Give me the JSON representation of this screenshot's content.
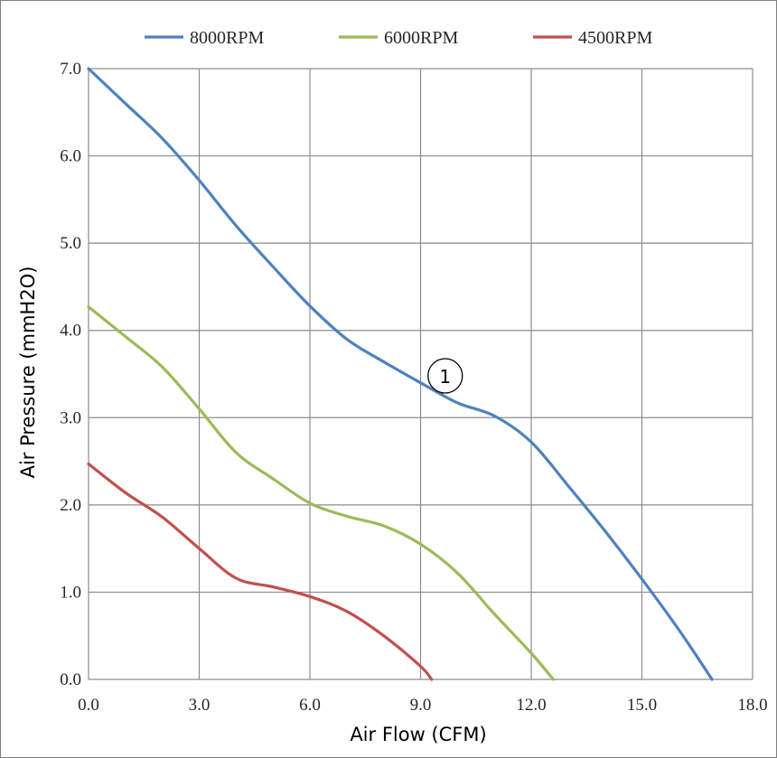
{
  "chart_data": {
    "type": "line",
    "title": "",
    "xlabel": "Air Flow (CFM)",
    "ylabel": "Air Pressure (mmH2O)",
    "xlim": [
      0,
      18
    ],
    "ylim": [
      0,
      7
    ],
    "x_ticks": [
      "0.0",
      "3.0",
      "6.0",
      "9.0",
      "12.0",
      "15.0",
      "18.0"
    ],
    "y_ticks": [
      "0.0",
      "1.0",
      "2.0",
      "3.0",
      "4.0",
      "5.0",
      "6.0",
      "7.0"
    ],
    "grid": true,
    "legend_position": "top-center",
    "annotation": "1",
    "annotation_point": [
      9.3,
      3.5
    ],
    "series": [
      {
        "name": "8000RPM",
        "color": "#4f81bd",
        "points": [
          [
            0,
            7.0
          ],
          [
            1.0,
            6.6
          ],
          [
            2.0,
            6.2
          ],
          [
            3.0,
            5.72
          ],
          [
            4.0,
            5.2
          ],
          [
            5.0,
            4.73
          ],
          [
            6.0,
            4.28
          ],
          [
            7.0,
            3.9
          ],
          [
            8.0,
            3.64
          ],
          [
            9.0,
            3.4
          ],
          [
            10.0,
            3.17
          ],
          [
            11.0,
            3.02
          ],
          [
            12.0,
            2.72
          ],
          [
            13.0,
            2.22
          ],
          [
            14.0,
            1.7
          ],
          [
            15.0,
            1.15
          ],
          [
            16.0,
            0.57
          ],
          [
            16.9,
            0.0
          ]
        ]
      },
      {
        "name": "6000RPM",
        "color": "#9bbb59",
        "points": [
          [
            0,
            4.27
          ],
          [
            1.0,
            3.93
          ],
          [
            2.0,
            3.58
          ],
          [
            3.0,
            3.1
          ],
          [
            4.0,
            2.6
          ],
          [
            5.0,
            2.3
          ],
          [
            6.0,
            2.02
          ],
          [
            7.0,
            1.87
          ],
          [
            8.0,
            1.76
          ],
          [
            9.0,
            1.55
          ],
          [
            10.0,
            1.22
          ],
          [
            11.0,
            0.75
          ],
          [
            12.0,
            0.3
          ],
          [
            12.6,
            0.0
          ]
        ]
      },
      {
        "name": "4500RPM",
        "color": "#c0504d",
        "points": [
          [
            0,
            2.47
          ],
          [
            1.0,
            2.14
          ],
          [
            2.0,
            1.86
          ],
          [
            3.0,
            1.5
          ],
          [
            4.0,
            1.16
          ],
          [
            5.0,
            1.06
          ],
          [
            6.0,
            0.95
          ],
          [
            7.0,
            0.78
          ],
          [
            8.0,
            0.5
          ],
          [
            9.0,
            0.15
          ],
          [
            9.3,
            0.0
          ]
        ]
      }
    ]
  }
}
